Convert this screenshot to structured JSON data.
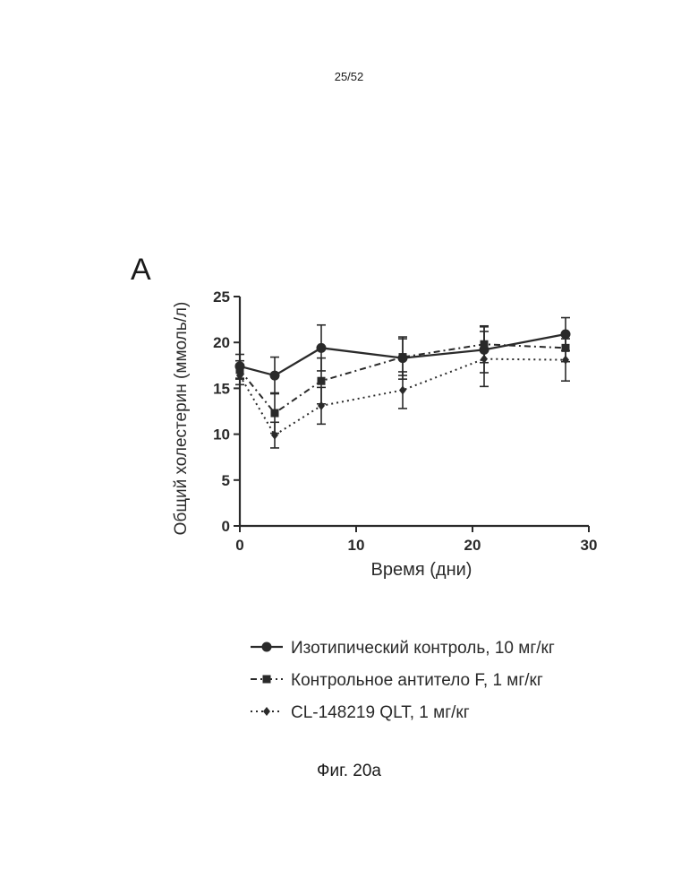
{
  "page_number": "25/52",
  "panel_letter": "A",
  "figure_caption": "Фиг. 20а",
  "chart_data": {
    "type": "line",
    "xlabel": "Время (дни)",
    "ylabel": "Общий холестерин (ммоль/л)",
    "xlim": [
      0,
      30
    ],
    "ylim": [
      0,
      25
    ],
    "xticks": [
      0,
      10,
      20,
      30
    ],
    "yticks": [
      0,
      5,
      10,
      15,
      20,
      25
    ],
    "grid": false,
    "legend_placement": "below",
    "series": [
      {
        "name": "Изотипический контроль, 10 мг/кг",
        "style": "solid",
        "marker": "circle",
        "x": [
          0,
          3,
          7,
          14,
          21,
          28
        ],
        "y": [
          17.4,
          16.4,
          19.4,
          18.3,
          19.2,
          20.9
        ],
        "err": [
          1.3,
          2.0,
          2.5,
          2.3,
          2.5,
          1.8
        ]
      },
      {
        "name": "Контрольное антитело F, 1 мг/кг",
        "style": "dashed",
        "marker": "square",
        "x": [
          0,
          3,
          7,
          14,
          21,
          28
        ],
        "y": [
          17.0,
          12.3,
          15.8,
          18.4,
          19.8,
          19.4
        ],
        "err": [
          1.0,
          2.2,
          2.5,
          2.0,
          2.0,
          1.5
        ]
      },
      {
        "name": "CL-148219 QLT, 1 мг/кг",
        "style": "dotted",
        "marker": "diamond",
        "x": [
          0,
          3,
          7,
          14,
          21,
          28
        ],
        "y": [
          16.4,
          9.9,
          13.1,
          14.8,
          18.2,
          18.1
        ],
        "err": [
          1.0,
          1.4,
          2.0,
          2.0,
          3.0,
          2.3
        ]
      }
    ]
  }
}
